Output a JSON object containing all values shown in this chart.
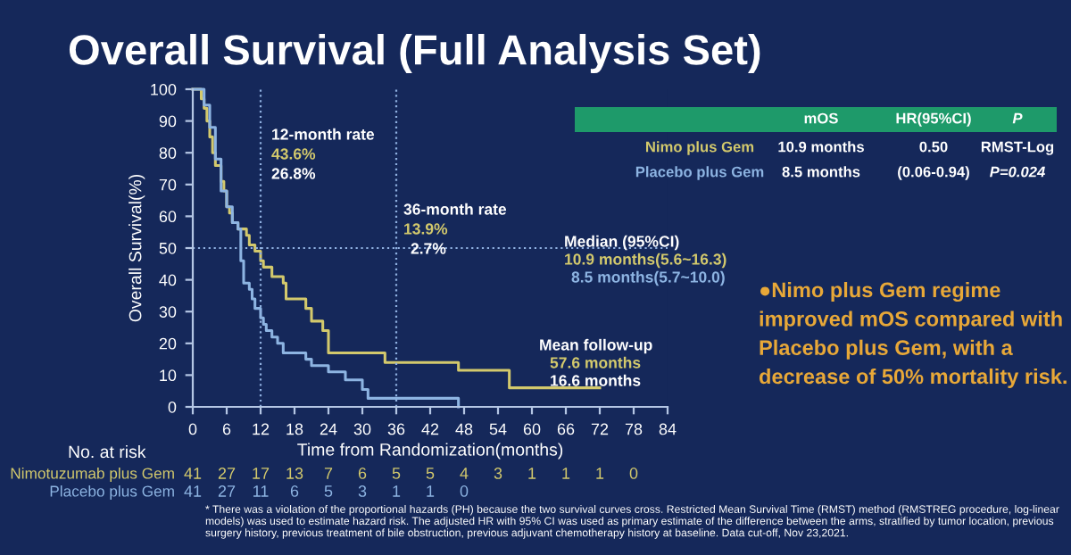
{
  "chart_data": {
    "type": "step",
    "title": "Overall Survival (Full Analysis Set)",
    "xlabel": "Time from Randomization(months)",
    "ylabel": "Overall Survival(%)",
    "xlim": [
      0,
      84
    ],
    "xticks": [
      0,
      6,
      12,
      18,
      24,
      30,
      36,
      42,
      48,
      54,
      60,
      66,
      72,
      78,
      84
    ],
    "ylim": [
      0,
      100
    ],
    "yticks": [
      0,
      10,
      20,
      30,
      40,
      50,
      60,
      70,
      80,
      90,
      100
    ],
    "grid": false,
    "legend": false,
    "series": [
      {
        "name": "Nimotuzumab plus Gem",
        "color": "#d3c96c",
        "x": [
          0,
          1.5,
          2,
          2.5,
          3,
          3.5,
          4,
          5,
          5.5,
          6,
          6.5,
          7,
          8,
          9.5,
          10,
          11,
          12,
          12.5,
          14,
          16,
          16.5,
          20,
          21,
          23,
          24,
          34,
          47,
          56,
          72
        ],
        "values": [
          100,
          97,
          94,
          90,
          85,
          80,
          76,
          71,
          68,
          63,
          61,
          58,
          56,
          54,
          51,
          49,
          46,
          44,
          41,
          39,
          34,
          31,
          27,
          24,
          17,
          14,
          11.5,
          6,
          6
        ]
      },
      {
        "name": "Placebo plus Gem",
        "color": "#8db4e2",
        "x": [
          0,
          2,
          3,
          4,
          5,
          6,
          7,
          8,
          8.5,
          9,
          10,
          10.5,
          11,
          12,
          12.5,
          13,
          14,
          15,
          16,
          20,
          21,
          24,
          27,
          30,
          31,
          47
        ],
        "values": [
          100,
          95,
          88,
          78,
          68,
          63,
          58,
          56,
          46,
          39,
          37,
          34,
          31,
          28,
          26,
          24,
          22,
          20,
          17,
          15,
          13,
          11,
          8.5,
          5.5,
          2.7,
          0
        ]
      }
    ],
    "ref_lines": [
      {
        "axis": "x",
        "value": 12,
        "color": "#8fb0e0",
        "line_style": "dotted"
      },
      {
        "axis": "x",
        "value": 36,
        "color": "#8fb0e0",
        "line_style": "dotted"
      },
      {
        "axis": "y",
        "value": 50,
        "color": "#8fb0e0",
        "line_style": "dotted"
      }
    ],
    "annotations": [
      "12-month rate",
      "43.6%",
      "26.8%",
      "36-month rate",
      "13.9%",
      "2.7%",
      "Median (95%CI)",
      "10.9 months(5.6~16.3)",
      "8.5 months(5.7~10.0)",
      "Mean follow-up",
      "57.6 months",
      "16.6 months",
      "No. at risk",
      "mOS",
      "HR(95%CI)",
      "P",
      "Nimo plus Gem",
      "10.9 months",
      "0.50",
      "RMST-Log",
      "Placebo plus Gem",
      "8.5 months",
      "(0.06-0.94)",
      "P=0.024",
      "●Nimo plus Gem regime improved mOS compared with Placebo plus Gem, with a decrease of 50% mortality risk.",
      "* There was a violation of the proportional hazards (PH) because the two survival curves cross. Restricted Mean Survival Time (RMST) method (RMSTREG procedure, log-linear models) was used to estimate hazard risk. The adjusted HR with 95% CI was used as primary estimate of the difference between the arms, stratified by tumor location, previous surgery history, previous treatment of bile obstruction, previous adjuvant chemotherapy history at baseline. Data cut-off, Nov 23,2021.",
      "41 27 17 13 7 6 5 5 4 3 1 1 1 0",
      "41 27 11 6 5 3 1 1 0"
    ]
  }
}
